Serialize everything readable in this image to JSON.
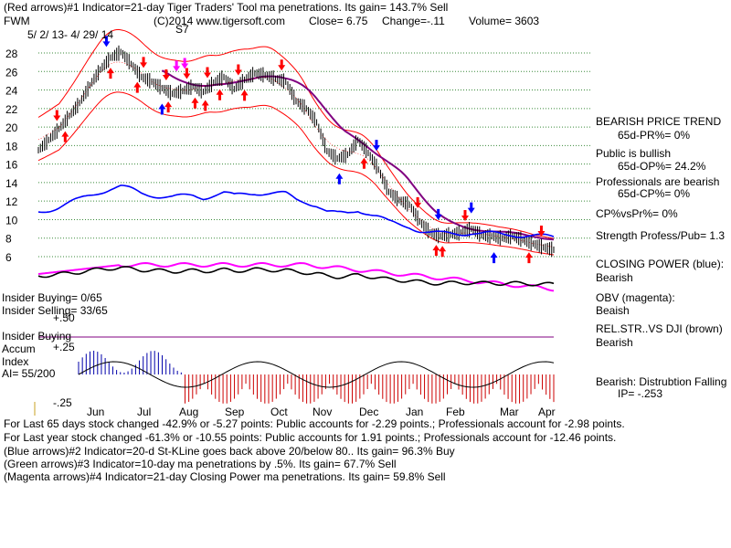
{
  "header": {
    "line1": "(Red arrows)#1 Indicator=21-day Tiger Traders' Tool ma penetrations.  Its gain= 143.7% Sell",
    "line2_left": "FWM",
    "line2_mid": "(C)2014 www.tigersoft.com",
    "close": "Close=  6.75",
    "change": "Change=-.11",
    "volume": "Volume= 3603",
    "date_range": "5/ 2/ 13-  4/ 29/ 14",
    "s7": "S7"
  },
  "right_panel": {
    "bearish_trend": "BEARISH PRICE TREND",
    "pr": "65d-PR%=  0%",
    "public_bullish": "Public is bullish",
    "op": "65d-OP%= 24.2%",
    "prof_bearish": "Professionals are bearish",
    "cp": "65d-CP%= 0%",
    "cpvspr": "CP%vsPr%=  0%",
    "strength": "Strength Profess/Pub= 1.3",
    "closing_power": "CLOSING POWER (blue):",
    "closing_power_val": "Bearish",
    "obv": "OBV (magenta):",
    "obv_val": "Beaish",
    "relstr": "REL.STR..VS DJI (brown)",
    "relstr_val": "Bearish",
    "distribution": "Bearish: Distrubtion Falling",
    "ip": "IP= -.253"
  },
  "left_panel": {
    "insider_buying": "Insider Buying= 0/65",
    "insider_selling": "Insider Selling= 33/65",
    "insider_buying_label": "Insider Buying",
    "accum1": "Accum",
    "accum2": "Index",
    "ai": "AI= 55/200",
    "plus50": "+.50",
    "plus25": "+.25",
    "minus25": "-.25"
  },
  "footer": {
    "line1": "For Last 65 days stock changed -42.9% or -5.27 points:  Public accounts for -2.29 points.;  Professionals account for -2.98 points.",
    "line2": "For Last year stock changed -61.3% or -10.55 points:  Public accounts for  1.91 points.;  Professionals account for -12.46 points.",
    "line3": "(Blue arrows)#2 Indicator=20-d St-KLine goes back above 20/below 80.. Its gain= 96.3% Buy",
    "line4": "(Green arrows)#3 Indicator=10-day ma penetrations by .5%. Its gain= 67.7% Sell",
    "line5": "(Magenta arrows)#4 Indicator=21-day Closing Power ma penetrations.  Its gain= 59.8% Sell"
  },
  "colors": {
    "price": "#000000",
    "grid": "#3a8a3a",
    "band": "#ff0000",
    "ma_long": "#800080",
    "closing_power": "#0000ff",
    "obv": "#ff00ff",
    "relstr": "#000000",
    "accum_pos": "#0000aa",
    "accum_neg": "#cc0000",
    "red_arrow": "#ff0000",
    "blue_arrow": "#0000ff",
    "magenta_arrow": "#ff00ff"
  },
  "chart_data": {
    "type": "line",
    "title": "FWM",
    "price_axis": {
      "ticks": [
        28,
        26,
        24,
        22,
        20,
        18,
        16,
        14,
        12,
        10,
        8,
        6
      ],
      "ylim": [
        5,
        29
      ]
    },
    "months": [
      "Jun",
      "Jul",
      "Aug",
      "Sep",
      "Oct",
      "Nov",
      "Dec",
      "Jan",
      "Feb",
      "Mar",
      "Apr"
    ],
    "accum_axis": {
      "ticks": [
        "+.50",
        "+.25",
        "-.25"
      ]
    },
    "price_series": {
      "name": "Close",
      "x_index": [
        0,
        5,
        10,
        15,
        20,
        25,
        30,
        35,
        40,
        45,
        50,
        55,
        60,
        65,
        70,
        75,
        80,
        85,
        90,
        95,
        100,
        105,
        110,
        115,
        120,
        125,
        130,
        135,
        140,
        145,
        150,
        155,
        160,
        165,
        170,
        175,
        180,
        185,
        190,
        195,
        200,
        205,
        210,
        215,
        220,
        225,
        230,
        235,
        240,
        245,
        250
      ],
      "values": [
        17.5,
        18.6,
        19.8,
        21.2,
        22.6,
        24.5,
        26.2,
        27.5,
        28.1,
        26.8,
        25.4,
        24.9,
        24.2,
        23.6,
        23.9,
        24.4,
        23.8,
        24.8,
        25.4,
        24.1,
        25.1,
        25.8,
        25.6,
        25.2,
        24.9,
        22.8,
        22.0,
        20.5,
        17.4,
        16.6,
        17.0,
        18.6,
        17.2,
        15.4,
        13.0,
        12.1,
        11.6,
        9.8,
        8.6,
        8.2,
        8.4,
        8.6,
        9.0,
        8.3,
        8.2,
        8.0,
        8.2,
        7.8,
        7.4,
        7.0,
        6.75
      ]
    },
    "series_markers": {
      "red_arrows_up_x": [
        13,
        35,
        48,
        63,
        76,
        81,
        88,
        100,
        158,
        193,
        196
      ],
      "red_arrows_down_x": [
        9,
        51,
        62,
        72,
        82,
        97,
        118,
        184,
        207,
        244
      ],
      "red_arrow_up_last_x": 238,
      "blue_arrows_up_x": [
        60,
        146,
        221
      ],
      "blue_arrows_down_x": [
        33,
        164,
        194,
        210
      ],
      "magenta_arrows_down_x": [
        67,
        71
      ]
    }
  }
}
